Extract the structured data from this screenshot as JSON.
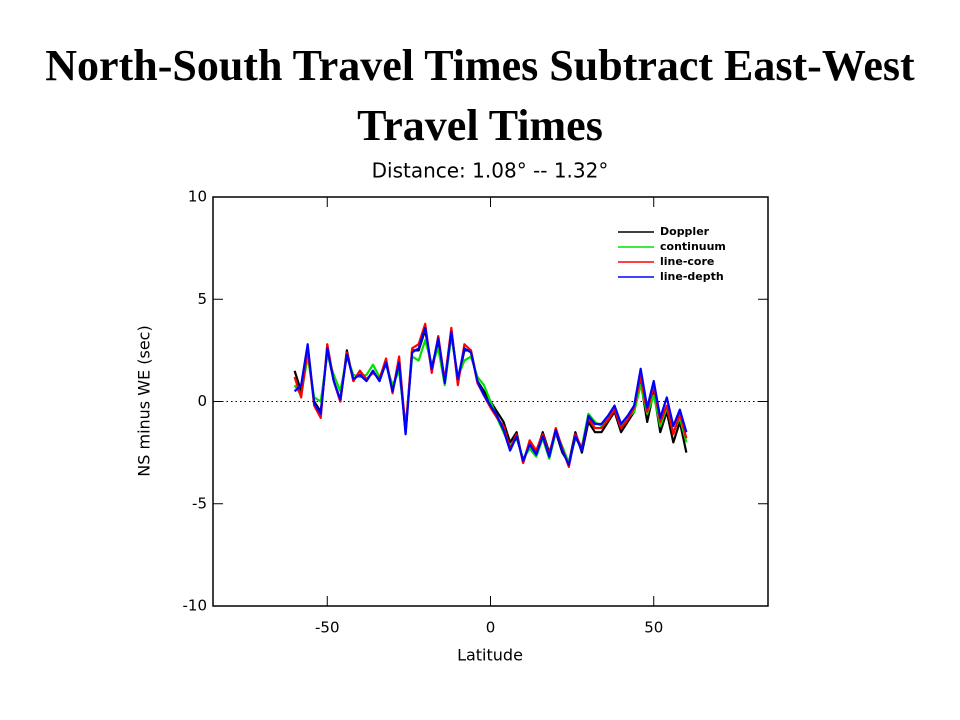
{
  "heading": "North-South Travel Times Subtract East-West Travel Times",
  "chart_data": {
    "type": "line",
    "title": "Distance: 1.08° -- 1.32°",
    "x_label": "Latitude",
    "y_label": "NS minus WE (sec)",
    "xlim": [
      -85,
      85
    ],
    "ylim": [
      -10,
      10
    ],
    "xticks": [
      -50,
      0,
      50
    ],
    "yticks": [
      -10,
      -5,
      0,
      5,
      10
    ],
    "hline": 0,
    "legend": "upper right",
    "x": [
      -60,
      -58,
      -56,
      -54,
      -52,
      -50,
      -48,
      -46,
      -44,
      -42,
      -40,
      -38,
      -36,
      -34,
      -32,
      -30,
      -28,
      -26,
      -24,
      -22,
      -20,
      -18,
      -16,
      -14,
      -12,
      -10,
      -8,
      -6,
      -4,
      -2,
      0,
      2,
      4,
      6,
      8,
      10,
      12,
      14,
      16,
      18,
      20,
      22,
      24,
      26,
      28,
      30,
      32,
      34,
      36,
      38,
      40,
      42,
      44,
      46,
      48,
      50,
      52,
      54,
      56,
      58,
      60
    ],
    "series": [
      {
        "name": "Doppler",
        "color": "#000000",
        "values": [
          1.5,
          0.5,
          2.5,
          0,
          -0.5,
          2.5,
          1.0,
          0,
          2.5,
          1,
          1.5,
          1.0,
          1.5,
          1,
          2,
          0.5,
          2.0,
          -1.5,
          2.5,
          2.5,
          3.5,
          1.5,
          3,
          1,
          3.5,
          1,
          2.5,
          2.5,
          1,
          0.5,
          0,
          -0.5,
          -1,
          -2,
          -1.5,
          -3,
          -2,
          -2.5,
          -1.5,
          -2.5,
          -1.5,
          -2.5,
          -3,
          -1.5,
          -2.5,
          -1,
          -1.5,
          -1.5,
          -1,
          -0.5,
          -1.5,
          -1,
          -0.5,
          1,
          -1,
          0.5,
          -1.5,
          -0.5,
          -2,
          -1,
          -2.5
        ]
      },
      {
        "name": "continuum",
        "color": "#00e000",
        "values": [
          0.8,
          0.3,
          2.2,
          0.2,
          0,
          2.3,
          1.3,
          0.5,
          2.2,
          1.3,
          1.2,
          1.3,
          1.8,
          1.2,
          1.8,
          0.8,
          1.5,
          -1.2,
          2.2,
          2.0,
          3.0,
          1.8,
          2.6,
          0.8,
          3.2,
          1.2,
          2.0,
          2.2,
          1.2,
          0.8,
          0,
          -0.8,
          -1.5,
          -2.2,
          -1.8,
          -2.8,
          -2.3,
          -2.7,
          -1.8,
          -2.8,
          -1.5,
          -2.2,
          -3.0,
          -1.8,
          -2.2,
          -0.6,
          -1.0,
          -1.2,
          -0.8,
          -0.3,
          -1.2,
          -0.8,
          -0.5,
          0.8,
          -0.6,
          0.3,
          -1.2,
          -0.3,
          -1.5,
          -0.8,
          -2.0
        ]
      },
      {
        "name": "line-core",
        "color": "#ff0000",
        "values": [
          1.2,
          0.2,
          2.6,
          -0.2,
          -0.8,
          2.8,
          1.0,
          0,
          2.4,
          1,
          1.5,
          1.1,
          1.4,
          1.1,
          2.1,
          0.4,
          2.2,
          -1.4,
          2.6,
          2.8,
          3.8,
          1.4,
          3.2,
          1.0,
          3.6,
          0.8,
          2.8,
          2.5,
          0.9,
          0.3,
          -0.3,
          -0.8,
          -1.2,
          -2.3,
          -1.6,
          -3.0,
          -1.9,
          -2.4,
          -1.6,
          -2.6,
          -1.3,
          -2.3,
          -3.2,
          -1.6,
          -2.3,
          -0.8,
          -1.3,
          -1.3,
          -0.9,
          -0.4,
          -1.3,
          -0.9,
          -0.3,
          1.2,
          -0.5,
          0.8,
          -1.0,
          -0.2,
          -1.6,
          -0.6,
          -1.8
        ]
      },
      {
        "name": "line-depth",
        "color": "#0000ff",
        "values": [
          0.5,
          0.8,
          2.8,
          -0.1,
          -0.6,
          2.6,
          1.0,
          0.1,
          2.3,
          1.1,
          1.3,
          1.0,
          1.5,
          1.0,
          1.9,
          0.5,
          1.9,
          -1.6,
          2.4,
          2.6,
          3.6,
          1.6,
          3.1,
          0.9,
          3.4,
          1.1,
          2.6,
          2.4,
          1.0,
          0.3,
          -0.2,
          -0.7,
          -1.4,
          -2.4,
          -1.7,
          -2.9,
          -2.1,
          -2.6,
          -1.7,
          -2.7,
          -1.4,
          -2.4,
          -3.1,
          -1.7,
          -2.4,
          -0.7,
          -1.1,
          -1.1,
          -0.7,
          -0.2,
          -1.1,
          -0.7,
          -0.2,
          1.6,
          -0.3,
          1.0,
          -0.8,
          0.2,
          -1.2,
          -0.4,
          -1.5
        ]
      }
    ]
  }
}
